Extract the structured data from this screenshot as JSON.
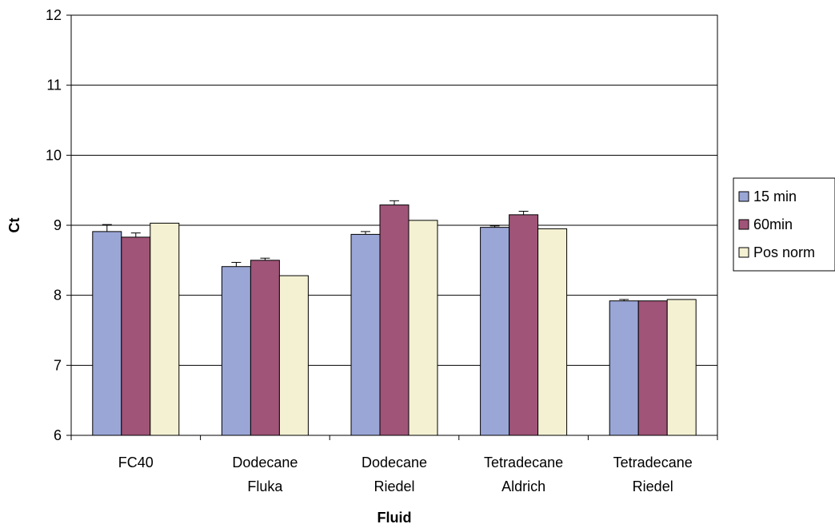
{
  "chart_data": {
    "type": "bar",
    "title": "",
    "xlabel": "Fluid",
    "ylabel": "Ct",
    "ylim": [
      6,
      12
    ],
    "yticks": [
      6,
      7,
      8,
      9,
      10,
      11,
      12
    ],
    "grid": true,
    "legend_position": "right",
    "categories": [
      [
        "FC40"
      ],
      [
        "Dodecane",
        "Fluka"
      ],
      [
        "Dodecane",
        "Riedel"
      ],
      [
        "Tetradecane",
        "Aldrich"
      ],
      [
        "Tetradecane",
        "Riedel"
      ]
    ],
    "series": [
      {
        "name": "15 min",
        "color": "#9aa6d6",
        "values": [
          8.91,
          8.41,
          8.87,
          8.97,
          7.92
        ],
        "errors": [
          0.1,
          0.06,
          0.04,
          0.02,
          0.02
        ]
      },
      {
        "name": "60min",
        "color": "#a05477",
        "values": [
          8.83,
          8.5,
          9.29,
          9.15,
          7.92
        ],
        "errors": [
          0.06,
          0.03,
          0.06,
          0.05,
          0.0
        ]
      },
      {
        "name": "Pos norm",
        "color": "#f3f1d2",
        "values": [
          9.03,
          8.28,
          9.07,
          8.95,
          7.94
        ],
        "errors": [
          0,
          0,
          0,
          0,
          0
        ]
      }
    ]
  }
}
